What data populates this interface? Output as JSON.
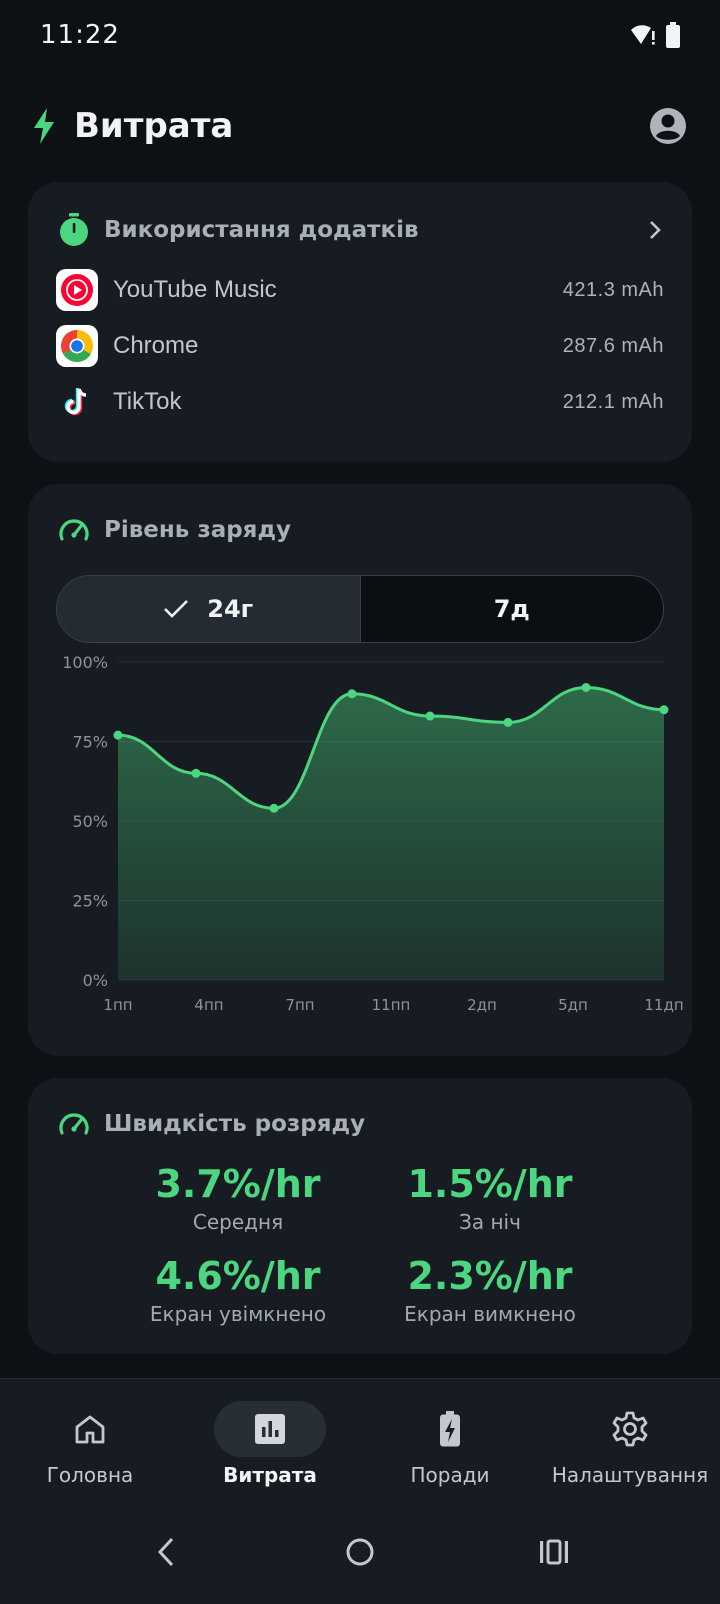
{
  "status_bar": {
    "time": "11:22"
  },
  "header": {
    "title": "Витрата"
  },
  "app_usage": {
    "title": "Використання додатків",
    "apps": [
      {
        "name": "YouTube Music",
        "usage": "421.3 mAh",
        "icon": "youtube-music-icon"
      },
      {
        "name": "Chrome",
        "usage": "287.6 mAh",
        "icon": "chrome-icon"
      },
      {
        "name": "TikTok",
        "usage": "212.1 mAh",
        "icon": "tiktok-icon"
      }
    ]
  },
  "battery_level": {
    "title": "Рівень заряду",
    "ranges": [
      "24г",
      "7д"
    ],
    "selected_range": "24г"
  },
  "chart_data": {
    "type": "area",
    "x": [
      "1пп",
      "4пп",
      "7пп",
      "11пп",
      "2дп",
      "5дп",
      "11дп"
    ],
    "points": [
      {
        "x": "1пп",
        "y": 77
      },
      {
        "x": "4пп",
        "y": 65
      },
      {
        "x": "7пп",
        "y": 54
      },
      {
        "x": "10пп",
        "y": 90
      },
      {
        "x": "1дп",
        "y": 83
      },
      {
        "x": "4дп",
        "y": 81
      },
      {
        "x": "7дп",
        "y": 92
      },
      {
        "x": "11дп",
        "y": 85
      }
    ],
    "y_ticks": [
      "100%",
      "75%",
      "50%",
      "25%",
      "0%"
    ],
    "ylim": [
      0,
      100
    ],
    "grid": true,
    "color": "#4cd67f"
  },
  "discharge": {
    "title": "Швидкість розряду",
    "stats": [
      {
        "value": "3.7%/hr",
        "label": "Середня"
      },
      {
        "value": "1.5%/hr",
        "label": "За ніч"
      },
      {
        "value": "4.6%/hr",
        "label": "Екран увімкнено"
      },
      {
        "value": "2.3%/hr",
        "label": "Екран вимкнено"
      }
    ]
  },
  "bottom_nav": {
    "active": "Витрата",
    "items": [
      {
        "label": "Головна",
        "icon": "home-icon"
      },
      {
        "label": "Витрата",
        "icon": "bar-chart-icon"
      },
      {
        "label": "Поради",
        "icon": "battery-charging-icon"
      },
      {
        "label": "Налаштування",
        "icon": "gear-icon"
      }
    ]
  },
  "colors": {
    "accent": "#4cd67f",
    "background": "#0d1116",
    "card": "#171c22"
  }
}
